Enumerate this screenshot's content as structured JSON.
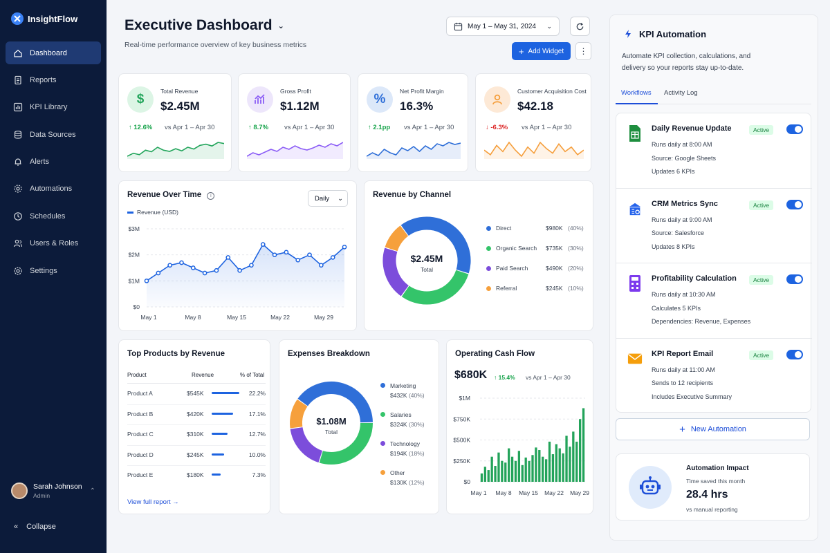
{
  "brand": "InsightFlow",
  "nav": [
    {
      "label": "Dashboard",
      "icon": "home-icon",
      "active": true
    },
    {
      "label": "Reports",
      "icon": "document-icon"
    },
    {
      "label": "KPI Library",
      "icon": "chart-icon"
    },
    {
      "label": "Data Sources",
      "icon": "database-icon"
    },
    {
      "label": "Alerts",
      "icon": "bell-icon"
    },
    {
      "label": "Automations",
      "icon": "gear-icon"
    },
    {
      "label": "Schedules",
      "icon": "clock-icon"
    },
    {
      "label": "Users & Roles",
      "icon": "users-icon"
    },
    {
      "label": "Settings",
      "icon": "settings-icon"
    }
  ],
  "user": {
    "name": "Sarah Johnson",
    "role": "Admin"
  },
  "collapse_label": "Collapse",
  "header": {
    "title": "Executive Dashboard",
    "subtitle": "Real-time performance overview of key business metrics",
    "date_range": "May 1 – May 31, 2024",
    "add_widget": "Add Widget"
  },
  "kpis": [
    {
      "label": "Total Revenue",
      "value": "$2.45M",
      "delta": "↑ 12.6%",
      "vs": "vs Apr 1 – Apr 30",
      "icon": "$",
      "color": "#22a55b",
      "bg": "#dcf5e5",
      "trend": "up",
      "spark": [
        5,
        6,
        5.5,
        7,
        6.5,
        8,
        7,
        6.6,
        7.5,
        6.8,
        8,
        7.4,
        8.6,
        9,
        8.4,
        9.6,
        9.2
      ]
    },
    {
      "label": "Gross Profit",
      "value": "$1.12M",
      "delta": "↑ 8.7%",
      "vs": "vs Apr 1 – Apr 30",
      "icon": "chart",
      "color": "#8b5cf6",
      "bg": "#ede6fb",
      "trend": "up",
      "spark": [
        5,
        6,
        5.4,
        6.2,
        7,
        6.4,
        7.6,
        7,
        8,
        7.2,
        6.8,
        7.4,
        8.2,
        7.6,
        8.6,
        8,
        9
      ]
    },
    {
      "label": "Net Profit Margin",
      "value": "16.3%",
      "delta": "↑ 2.1pp",
      "vs": "vs Apr 1 – Apr 30",
      "icon": "%",
      "color": "#2f6fd8",
      "bg": "#dce8f9",
      "trend": "up",
      "spark": [
        6,
        7,
        6.2,
        8,
        7,
        6.4,
        8.4,
        7.6,
        8.8,
        7.4,
        9,
        8,
        9.6,
        9,
        10,
        9.4,
        9.8
      ]
    },
    {
      "label": "Customer Acquisition Cost",
      "value": "$42.18",
      "delta": "↓ -6.3%",
      "vs": "vs Apr 1 – Apr 30",
      "icon": "person",
      "color": "#f59e3b",
      "bg": "#fde9d6",
      "trend": "down",
      "spark": [
        7,
        6.4,
        7.6,
        6.8,
        8,
        7,
        6.2,
        7.4,
        6.6,
        8,
        7.2,
        6.6,
        7.8,
        6.8,
        7.4,
        6.4,
        7
      ]
    }
  ],
  "revenue_over_time": {
    "title": "Revenue Over Time",
    "period": "Daily",
    "legend": "Revenue (USD)",
    "y_ticks": [
      "$3M",
      "$2M",
      "$1M",
      "$0"
    ],
    "x_ticks": [
      "May 1",
      "May 8",
      "May 15",
      "May 22",
      "May 29"
    ]
  },
  "revenue_by_channel": {
    "title": "Revenue by Channel",
    "center_value": "$2.45M",
    "center_label": "Total",
    "items": [
      {
        "name": "Direct",
        "value": "$980K",
        "pct": "(40%)",
        "share": 40,
        "color": "#2f6fd8"
      },
      {
        "name": "Organic Search",
        "value": "$735K",
        "pct": "(30%)",
        "share": 30,
        "color": "#34c46a"
      },
      {
        "name": "Paid Search",
        "value": "$490K",
        "pct": "(20%)",
        "share": 20,
        "color": "#7c4ddb"
      },
      {
        "name": "Referral",
        "value": "$245K",
        "pct": "(10%)",
        "share": 10,
        "color": "#f6a03c"
      }
    ]
  },
  "top_products": {
    "title": "Top Products by Revenue",
    "headers": [
      "Product",
      "Revenue",
      "% of Total"
    ],
    "rows": [
      {
        "name": "Product A",
        "revenue": "$545K",
        "pct": "22.2%",
        "share": 22.2
      },
      {
        "name": "Product B",
        "revenue": "$420K",
        "pct": "17.1%",
        "share": 17.1
      },
      {
        "name": "Product C",
        "revenue": "$310K",
        "pct": "12.7%",
        "share": 12.7
      },
      {
        "name": "Product D",
        "revenue": "$245K",
        "pct": "10.0%",
        "share": 10.0
      },
      {
        "name": "Product E",
        "revenue": "$180K",
        "pct": "7.3%",
        "share": 7.3
      }
    ],
    "link": "View full report →"
  },
  "expenses": {
    "title": "Expenses Breakdown",
    "center_value": "$1.08M",
    "center_label": "Total",
    "items": [
      {
        "name": "Marketing",
        "value": "$432K",
        "pct": "(40%)",
        "share": 40,
        "color": "#2f6fd8"
      },
      {
        "name": "Salaries",
        "value": "$324K",
        "pct": "(30%)",
        "share": 30,
        "color": "#34c46a"
      },
      {
        "name": "Technology",
        "value": "$194K",
        "pct": "(18%)",
        "share": 18,
        "color": "#7c4ddb"
      },
      {
        "name": "Other",
        "value": "$130K",
        "pct": "(12%)",
        "share": 12,
        "color": "#f6a03c"
      }
    ]
  },
  "cash_flow": {
    "title": "Operating Cash Flow",
    "value": "$680K",
    "delta": "↑ 15.4%",
    "vs": "vs Apr 1 – Apr 30",
    "y_ticks": [
      "$1M",
      "$750K",
      "$500K",
      "$250K",
      "$0"
    ],
    "x_ticks": [
      "May 1",
      "May 8",
      "May 15",
      "May 22",
      "May 29"
    ]
  },
  "chart_data": [
    {
      "type": "line",
      "title": "Revenue Over Time",
      "series": [
        {
          "name": "Revenue (USD)",
          "values": [
            1.0,
            1.3,
            1.6,
            1.7,
            1.5,
            1.3,
            1.4,
            1.9,
            1.4,
            1.6,
            2.4,
            2.0,
            2.1,
            1.8,
            2.0,
            1.6,
            1.9,
            2.3
          ]
        }
      ],
      "ylim": [
        0,
        3
      ],
      "ylabel": "",
      "x_ticks": [
        "May 1",
        "May 8",
        "May 15",
        "May 22",
        "May 29"
      ]
    },
    {
      "type": "pie",
      "title": "Revenue by Channel",
      "categories": [
        "Direct",
        "Organic Search",
        "Paid Search",
        "Referral"
      ],
      "values": [
        40,
        30,
        20,
        10
      ]
    },
    {
      "type": "pie",
      "title": "Expenses Breakdown",
      "categories": [
        "Marketing",
        "Salaries",
        "Technology",
        "Other"
      ],
      "values": [
        40,
        30,
        18,
        12
      ]
    },
    {
      "type": "bar",
      "title": "Operating Cash Flow",
      "values": [
        100,
        180,
        140,
        300,
        190,
        350,
        250,
        230,
        400,
        300,
        250,
        370,
        200,
        290,
        250,
        320,
        410,
        380,
        300,
        270,
        480,
        330,
        450,
        400,
        340,
        550,
        420,
        600,
        480,
        750,
        880
      ],
      "ylim": [
        0,
        1000
      ],
      "ylabel": ""
    }
  ],
  "automation": {
    "title": "KPI Automation",
    "description": "Automate KPI collection, calculations, and delivery so your reports stay up-to-date.",
    "tabs": [
      "Workflows",
      "Activity Log"
    ],
    "workflows": [
      {
        "name": "Daily Revenue Update",
        "status": "Active",
        "lines": [
          "Runs daily at 8:00 AM",
          "Source:  Google Sheets",
          "Updates 6 KPIs"
        ],
        "icon": "sheets-icon",
        "color": "#1e8e3e"
      },
      {
        "name": "CRM Metrics Sync",
        "status": "Active",
        "lines": [
          "Runs daily at 9:00 AM",
          "Source:  Salesforce",
          "Updates 8 KPIs"
        ],
        "icon": "building-icon",
        "color": "#2563eb"
      },
      {
        "name": "Profitability Calculation",
        "status": "Active",
        "lines": [
          "Runs daily at 10:30 AM",
          "Calculates 5 KPIs",
          "Dependencies:  Revenue, Expenses"
        ],
        "icon": "calculator-icon",
        "color": "#7c3aed"
      },
      {
        "name": "KPI Report Email",
        "status": "Active",
        "lines": [
          "Runs daily at 11:00 AM",
          "Sends to 12 recipients",
          "Includes Executive Summary"
        ],
        "icon": "mail-icon",
        "color": "#f59e0b"
      }
    ],
    "new_button": "New Automation",
    "impact": {
      "title": "Automation Impact",
      "subtitle": "Time saved this month",
      "value": "28.4 hrs",
      "note": "vs manual reporting"
    }
  }
}
